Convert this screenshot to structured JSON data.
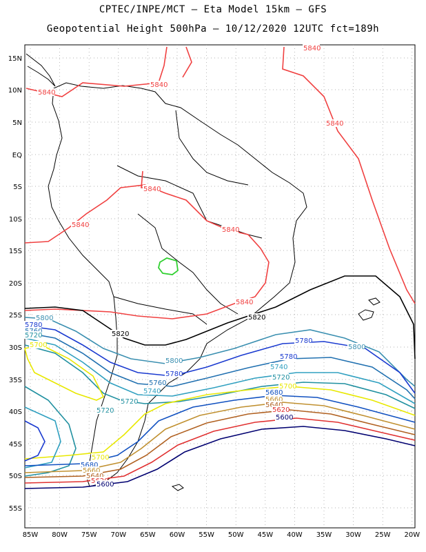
{
  "title_line1": "CPTEC/INPE/MCT –  Eta Model 15km – GFS",
  "title_line2": "Geopotential Height 500hPa – 10/12/2020 12UTC fct=189h",
  "lat_labels": [
    "15N",
    "10N",
    "5N",
    "EQ",
    "5S",
    "10S",
    "15S",
    "20S",
    "25S",
    "30S",
    "35S",
    "40S",
    "45S",
    "50S",
    "55S"
  ],
  "lon_labels": [
    "85W",
    "80W",
    "75W",
    "70W",
    "65W",
    "60W",
    "55W",
    "50W",
    "45W",
    "40W",
    "35W",
    "30W",
    "25W",
    "20W"
  ],
  "contour_labels": [
    "5840",
    "5840",
    "5840",
    "5840",
    "5840",
    "5840",
    "5840",
    "5840",
    "5820",
    "5820",
    "5800",
    "5800",
    "5800",
    "5780",
    "5780",
    "5780",
    "5780",
    "5760",
    "5760",
    "5740",
    "5740",
    "5720",
    "5720",
    "5720",
    "5720",
    "5700",
    "5700",
    "5700",
    "5680",
    "5680",
    "5660",
    "5640",
    "5620",
    "5600",
    "5660",
    "5640",
    "5620",
    "5600"
  ],
  "colors": {
    "5840": "#f04040",
    "5820": "#000000",
    "5800": "#3a8fb0",
    "5780": "#1a3ad0",
    "5760": "#2070b0",
    "5740": "#30a0c0",
    "5720": "#2090a0",
    "5700": "#e8e800",
    "5680": "#1050c0",
    "5660": "#c09030",
    "5640": "#b06020",
    "5620": "#e03030",
    "5600": "#000070",
    "green": "#30d030"
  }
}
